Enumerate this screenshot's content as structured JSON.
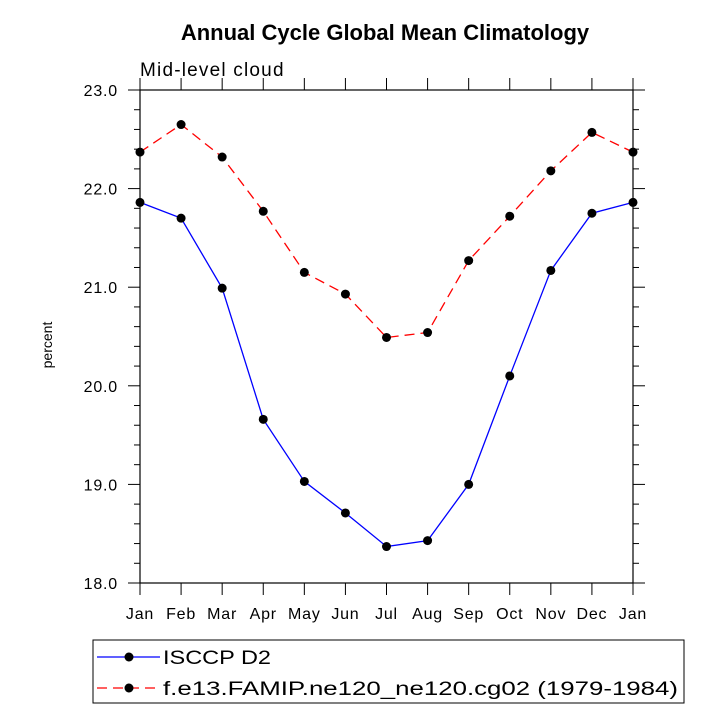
{
  "chart_data": {
    "type": "line",
    "title": "Annual Cycle Global Mean Climatology",
    "subtitle": "Mid-level cloud",
    "xlabel": "",
    "ylabel": "percent",
    "categories": [
      "Jan",
      "Feb",
      "Mar",
      "Apr",
      "May",
      "Jun",
      "Jul",
      "Aug",
      "Sep",
      "Oct",
      "Nov",
      "Dec",
      "Jan"
    ],
    "ylim": [
      18.0,
      23.0
    ],
    "yticks": [
      "18.0",
      "19.0",
      "20.0",
      "21.0",
      "22.0",
      "23.0"
    ],
    "y_minor_step": 0.2,
    "series": [
      {
        "name": "ISCCP D2",
        "color": "#0000ff",
        "dash": "solid",
        "values": [
          21.86,
          21.7,
          20.99,
          19.66,
          19.03,
          18.71,
          18.37,
          18.43,
          19.0,
          20.1,
          21.17,
          21.75,
          21.86
        ]
      },
      {
        "name": "f.e13.FAMIP.ne120_ne120.cg02 (1979-1984)",
        "color": "#ff0000",
        "dash": "dashed",
        "values": [
          22.37,
          22.65,
          22.32,
          21.77,
          21.15,
          20.93,
          20.49,
          20.54,
          21.27,
          21.72,
          22.18,
          22.57,
          22.37
        ]
      }
    ],
    "legend": "bottom"
  }
}
